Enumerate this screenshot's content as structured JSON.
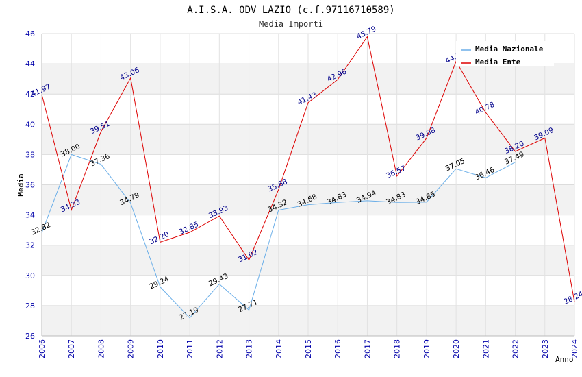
{
  "chart_data": {
    "type": "line",
    "title": "A.I.S.A. ODV LAZIO (c.f.97116710589)",
    "subtitle": "Media Importi",
    "ylabel": "Media",
    "xlabel": "Anno",
    "ylim": [
      26,
      46
    ],
    "yticks": [
      26,
      28,
      30,
      32,
      34,
      36,
      38,
      40,
      42,
      44,
      46
    ],
    "categories": [
      "2006",
      "2007",
      "2008",
      "2009",
      "2010",
      "2011",
      "2012",
      "2013",
      "2014",
      "2015",
      "2016",
      "2017",
      "2018",
      "2019",
      "2020",
      "2021",
      "2022",
      "2023",
      "2024"
    ],
    "grid": true,
    "legend_position": "top-right",
    "series": [
      {
        "name": "Media Nazionale",
        "color": "#6aaee8",
        "label_color": "#000000",
        "values": [
          32.82,
          38.0,
          37.36,
          34.79,
          29.24,
          27.19,
          29.43,
          27.71,
          34.32,
          34.68,
          34.83,
          34.94,
          34.83,
          34.85,
          37.05,
          36.46,
          37.49,
          null,
          null
        ]
      },
      {
        "name": "Media Ente",
        "color": "#dd0000",
        "label_color": "#00008b",
        "values": [
          41.97,
          34.33,
          39.51,
          43.06,
          32.2,
          32.85,
          33.93,
          31.02,
          35.68,
          41.43,
          42.96,
          45.79,
          36.57,
          39.08,
          44.17,
          40.78,
          38.2,
          39.09,
          28.24
        ]
      }
    ]
  }
}
